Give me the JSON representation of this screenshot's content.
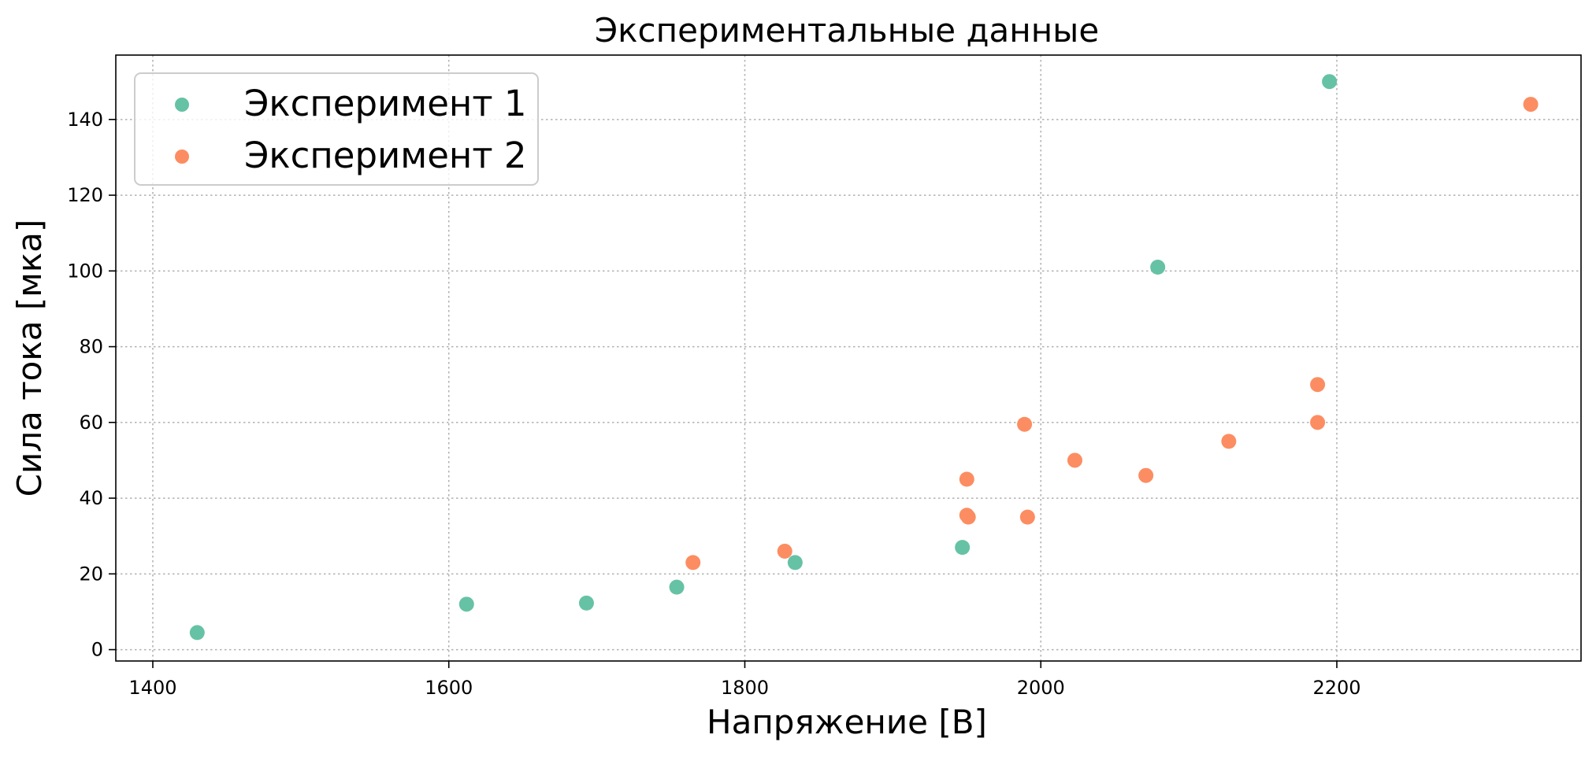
{
  "chart_data": {
    "type": "scatter",
    "title": "Экспериментальные данные",
    "xlabel": "Напряжение [В]",
    "ylabel": "Сила тока [мка]",
    "xlim": [
      1375,
      2365
    ],
    "ylim": [
      -3,
      157
    ],
    "x_ticks": [
      1400,
      1600,
      1800,
      2000,
      2200
    ],
    "y_ticks": [
      0,
      20,
      40,
      60,
      80,
      100,
      120,
      140
    ],
    "grid": true,
    "legend_position": "top-left",
    "series": [
      {
        "name": "Эксперимент 1",
        "color": "#66c2a5",
        "points": [
          {
            "x": 1430,
            "y": 4.5
          },
          {
            "x": 1612,
            "y": 12
          },
          {
            "x": 1693,
            "y": 12.3
          },
          {
            "x": 1754,
            "y": 16.5
          },
          {
            "x": 1834,
            "y": 23
          },
          {
            "x": 1947,
            "y": 27
          },
          {
            "x": 2079,
            "y": 101
          },
          {
            "x": 2195,
            "y": 150
          }
        ]
      },
      {
        "name": "Эксперимент 2",
        "color": "#fc8d62",
        "points": [
          {
            "x": 1765,
            "y": 23
          },
          {
            "x": 1827,
            "y": 26
          },
          {
            "x": 1950,
            "y": 45
          },
          {
            "x": 1950,
            "y": 35.5
          },
          {
            "x": 1951,
            "y": 35
          },
          {
            "x": 1989,
            "y": 59.5
          },
          {
            "x": 1991,
            "y": 35
          },
          {
            "x": 2023,
            "y": 50
          },
          {
            "x": 2071,
            "y": 46
          },
          {
            "x": 2127,
            "y": 55
          },
          {
            "x": 2187,
            "y": 70
          },
          {
            "x": 2187,
            "y": 60
          },
          {
            "x": 2331,
            "y": 144
          }
        ]
      }
    ]
  }
}
